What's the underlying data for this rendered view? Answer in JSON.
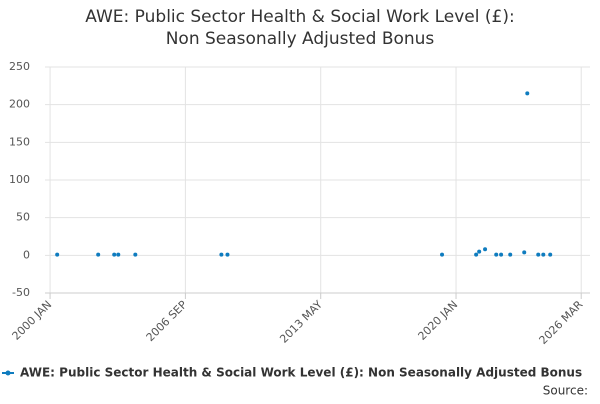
{
  "chart_data": {
    "type": "scatter",
    "title": "AWE: Public Sector Health & Social Work Level (£): Non Seasonally Adjusted Bonus",
    "series": [
      {
        "name": "AWE: Public Sector Health & Social Work Level (£): Non Seasonally Adjusted Bonus",
        "color": "#0f7cbf",
        "x": [
          2000.35,
          2002.37,
          2003.16,
          2003.36,
          2004.2,
          2008.44,
          2008.74,
          2019.31,
          2020.99,
          2021.14,
          2021.43,
          2021.98,
          2022.22,
          2022.67,
          2023.36,
          2023.51,
          2024.05,
          2024.3,
          2024.64
        ],
        "values": [
          1,
          1,
          1,
          1,
          1,
          1,
          1,
          1,
          1,
          5,
          8,
          1,
          1,
          1,
          4,
          215,
          1,
          1,
          1
        ]
      }
    ],
    "xlim": [
      1999.75,
      2026.6
    ],
    "xticks": [
      {
        "value": 2000.0,
        "label": "2000 JAN"
      },
      {
        "value": 2006.667,
        "label": "2006 SEP"
      },
      {
        "value": 2013.333,
        "label": "2013 MAY"
      },
      {
        "value": 2020.0,
        "label": "2020 JAN"
      },
      {
        "value": 2026.167,
        "label": "2026 MAR"
      }
    ],
    "ylim": [
      -50,
      250
    ],
    "yticks": [
      -50,
      0,
      50,
      100,
      150,
      200,
      250
    ],
    "grid": true,
    "source": "Source:"
  }
}
